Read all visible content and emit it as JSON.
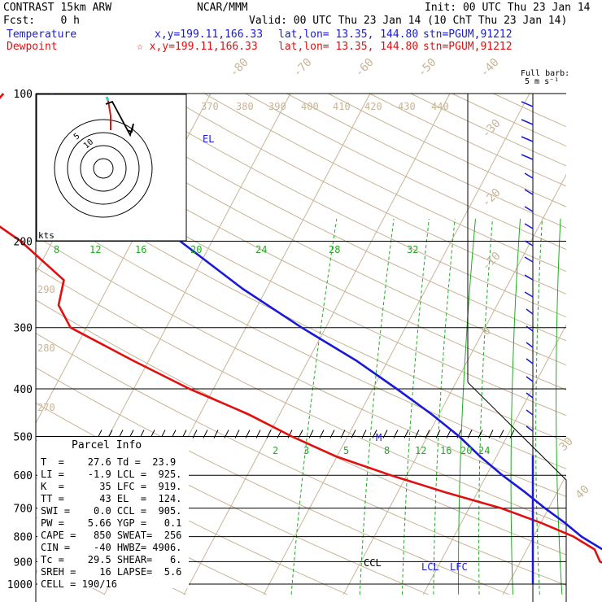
{
  "header": {
    "model": "CONTRAST 15km ARW",
    "org": "NCAR/MMM",
    "init": "Init: 00 UTC Thu 23 Jan 14",
    "fcst": "Fcst:    0 h",
    "valid": "Valid: 00 UTC Thu 23 Jan 14 (10 ChT Thu 23 Jan 14)",
    "temperature_label": "Temperature",
    "temperature_xy": "x,y=199.11,166.33",
    "temperature_latlon": "lat,lon= 13.35, 144.80",
    "temperature_stn": "stn=PGUM,91212",
    "dewpoint_label": "Dewpoint",
    "dewpoint_xy": "☆ x,y=199.11,166.33",
    "dewpoint_latlon": "lat,lon= 13.35, 144.80",
    "dewpoint_stn": "stn=PGUM,91212",
    "barb_title": "Full barb:",
    "barb_units": "5 m s⁻¹",
    "hodo_units": "kts",
    "hodo_rings": [
      "5",
      "10"
    ],
    "el_label": "EL",
    "m_label": "M",
    "ccl_label": "CCL",
    "lcl_label": "LCL",
    "lfc_label": "LFC"
  },
  "colors": {
    "temperature": "#1a1ad6",
    "dewpoint": "#e01010",
    "mixing_ratio": "#22aa22",
    "isotherms": "#c8b496",
    "isobars": "#000000"
  },
  "parcel_info": {
    "title": "Parcel Info",
    "rows": [
      "T  =    27.6 Td =  23.9",
      "LI =    -1.9 LCL =  925.",
      "K  =      35 LFC =  919.",
      "TT =      43 EL  =  124.",
      "SWI =    0.0 CCL =  905.",
      "PW =    5.66 YGP =   0.1",
      "CAPE =   850 SWEAT=  256",
      "CIN =    -40 HWBZ= 4906.",
      "Tc =    29.5 SHEAR=   6.",
      "SREH =    16 LAPSE=  5.6",
      "CELL = 190/16"
    ]
  },
  "chart_data": {
    "type": "line",
    "y_axis": "pressure (hPa), logarithmic, inverted",
    "ylim": [
      1000,
      100
    ],
    "pressure_labels": [
      "100",
      "200",
      "300",
      "400",
      "500",
      "600",
      "700",
      "800",
      "900",
      "1000"
    ],
    "isotherm_labels": [
      "-80",
      "-70",
      "-60",
      "-50",
      "-40",
      "-30",
      "-20",
      "-10",
      "0",
      "30",
      "40"
    ],
    "theta_labels": [
      "370",
      "380",
      "390",
      "400",
      "410",
      "420",
      "430",
      "440",
      "290",
      "280",
      "270"
    ],
    "mixing_ratio_labels": [
      "8",
      "12",
      "16",
      "20",
      "24",
      "28",
      "32",
      "2",
      "3",
      "5",
      "8",
      "12",
      "16",
      "20",
      "24"
    ],
    "series": [
      {
        "name": "Temperature",
        "color": "#1a1ad6",
        "points": [
          [
            100,
            -80
          ],
          [
            125,
            -73
          ],
          [
            150,
            -66
          ],
          [
            175,
            -59
          ],
          [
            200,
            -54
          ],
          [
            250,
            -43
          ],
          [
            300,
            -33
          ],
          [
            350,
            -24
          ],
          [
            400,
            -17
          ],
          [
            450,
            -11
          ],
          [
            500,
            -6
          ],
          [
            550,
            -2
          ],
          [
            600,
            2
          ],
          [
            650,
            6
          ],
          [
            700,
            9.5
          ],
          [
            750,
            13
          ],
          [
            800,
            16
          ],
          [
            850,
            19.5
          ],
          [
            900,
            22.5
          ],
          [
            925,
            23.5
          ],
          [
            950,
            25
          ],
          [
            1000,
            27.6
          ]
        ]
      },
      {
        "name": "Dewpoint",
        "color": "#e01010",
        "points": [
          [
            100,
            -86
          ],
          [
            125,
            -88
          ],
          [
            150,
            -86
          ],
          [
            175,
            -81
          ],
          [
            200,
            -74
          ],
          [
            240,
            -66
          ],
          [
            270,
            -65
          ],
          [
            300,
            -62
          ],
          [
            350,
            -52
          ],
          [
            400,
            -43
          ],
          [
            450,
            -34
          ],
          [
            500,
            -27
          ],
          [
            550,
            -20
          ],
          [
            600,
            -12
          ],
          [
            650,
            -4
          ],
          [
            700,
            4
          ],
          [
            750,
            10
          ],
          [
            800,
            15
          ],
          [
            850,
            18.5
          ],
          [
            900,
            20
          ],
          [
            925,
            22
          ],
          [
            950,
            23.5
          ],
          [
            1000,
            23.9
          ]
        ]
      }
    ]
  }
}
